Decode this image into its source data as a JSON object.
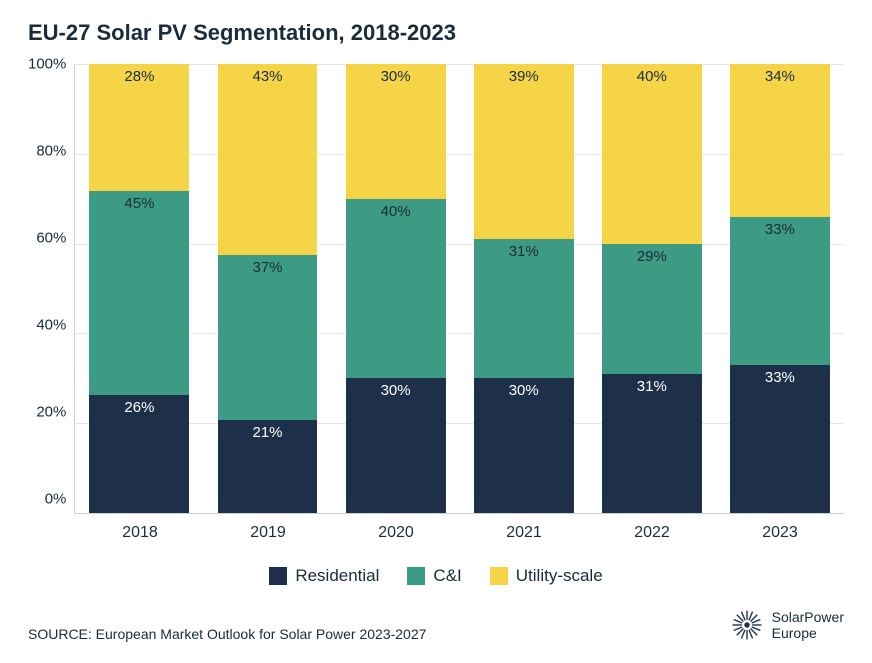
{
  "title": "EU-27 Solar PV Segmentation, 2018-2023",
  "chart": {
    "type": "stacked-bar-100",
    "ylim": [
      0,
      100
    ],
    "ytick_step": 20,
    "yticks": [
      "100%",
      "80%",
      "60%",
      "40%",
      "20%",
      "0%"
    ],
    "grid_color": "#e8e8e8",
    "axis_color": "#d0d0d0",
    "background_color": "#ffffff",
    "bar_width_pct": 13,
    "categories": [
      "2018",
      "2019",
      "2020",
      "2021",
      "2022",
      "2023"
    ],
    "series": [
      {
        "name": "Residential",
        "color": "#1e2f4a"
      },
      {
        "name": "C&I",
        "color": "#3d9b83"
      },
      {
        "name": "Utility-scale",
        "color": "#f5d547"
      }
    ],
    "data": [
      {
        "residential": 26,
        "ci": 45,
        "utility": 28,
        "labels": {
          "residential": "26%",
          "ci": "45%",
          "utility": "28%"
        }
      },
      {
        "residential": 21,
        "ci": 37,
        "utility": 43,
        "labels": {
          "residential": "21%",
          "ci": "37%",
          "utility": "43%"
        }
      },
      {
        "residential": 30,
        "ci": 40,
        "utility": 30,
        "labels": {
          "residential": "30%",
          "ci": "40%",
          "utility": "30%"
        }
      },
      {
        "residential": 30,
        "ci": 31,
        "utility": 39,
        "labels": {
          "residential": "30%",
          "ci": "31%",
          "utility": "39%"
        }
      },
      {
        "residential": 31,
        "ci": 29,
        "utility": 40,
        "labels": {
          "residential": "31%",
          "ci": "29%",
          "utility": "40%"
        }
      },
      {
        "residential": 33,
        "ci": 33,
        "utility": 34,
        "labels": {
          "residential": "33%",
          "ci": "33%",
          "utility": "34%"
        }
      }
    ],
    "label_color_on_dark": "#ffffff",
    "label_color_on_light": "#1a2b3c",
    "label_fontsize": 15,
    "title_fontsize": 22,
    "title_color": "#1a2b3c",
    "axis_fontsize": 15
  },
  "legend": {
    "items": [
      "Residential",
      "C&I",
      "Utility-scale"
    ],
    "fontsize": 17
  },
  "source": "SOURCE: European Market Outlook for Solar Power 2023-2027",
  "brand": {
    "line1": "SolarPower",
    "line2": "Europe",
    "icon_color": "#1e2f4a"
  }
}
